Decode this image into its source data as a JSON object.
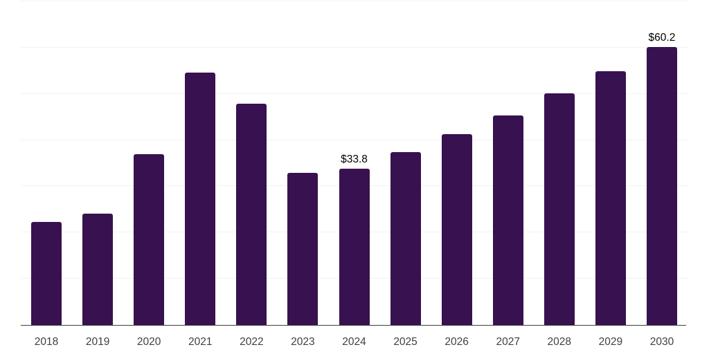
{
  "chart_data": {
    "type": "bar",
    "categories": [
      "2018",
      "2019",
      "2020",
      "2021",
      "2022",
      "2023",
      "2024",
      "2025",
      "2026",
      "2027",
      "2028",
      "2029",
      "2030"
    ],
    "values": [
      22.3,
      24.1,
      36.9,
      54.6,
      47.9,
      32.9,
      33.8,
      37.4,
      41.3,
      45.3,
      50.1,
      54.9,
      60.2
    ],
    "data_labels": [
      "",
      "",
      "",
      "",
      "",
      "",
      "$33.8",
      "",
      "",
      "",
      "",
      "",
      "$60.2"
    ],
    "title": "",
    "xlabel": "",
    "ylabel": "",
    "ylim": [
      0,
      70
    ],
    "gridline_step": 10,
    "grid": "horizontal",
    "legend": "none",
    "y_tick_labels_visible": false,
    "colors": {
      "bar": "#371150",
      "gridline": "#f1f1f1",
      "axis": "#3d3d3d",
      "tick_label": "#404040",
      "value_label": "#000000",
      "background": "#ffffff"
    }
  }
}
